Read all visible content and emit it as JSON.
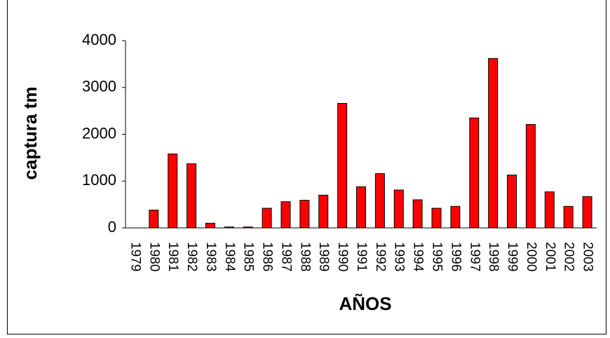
{
  "chart_data": {
    "type": "bar",
    "categories": [
      "1979",
      "1980",
      "1981",
      "1982",
      "1983",
      "1984",
      "1985",
      "1986",
      "1987",
      "1988",
      "1989",
      "1990",
      "1991",
      "1992",
      "1993",
      "1994",
      "1995",
      "1996",
      "1997",
      "1998",
      "1999",
      "2000",
      "2001",
      "2002",
      "2003"
    ],
    "values": [
      0,
      380,
      1580,
      1370,
      100,
      20,
      20,
      420,
      560,
      590,
      700,
      2660,
      880,
      1160,
      810,
      600,
      420,
      460,
      2350,
      3620,
      1130,
      2210,
      770,
      460,
      670
    ],
    "xlabel": "AÑOS",
    "ylabel": "captura tm",
    "ylim": [
      0,
      4000
    ],
    "yticks": [
      "0",
      "1000",
      "2000",
      "3000",
      "4000"
    ],
    "grid": false,
    "bar_color": "#ff0000",
    "bar_edge_color": "#000000"
  }
}
